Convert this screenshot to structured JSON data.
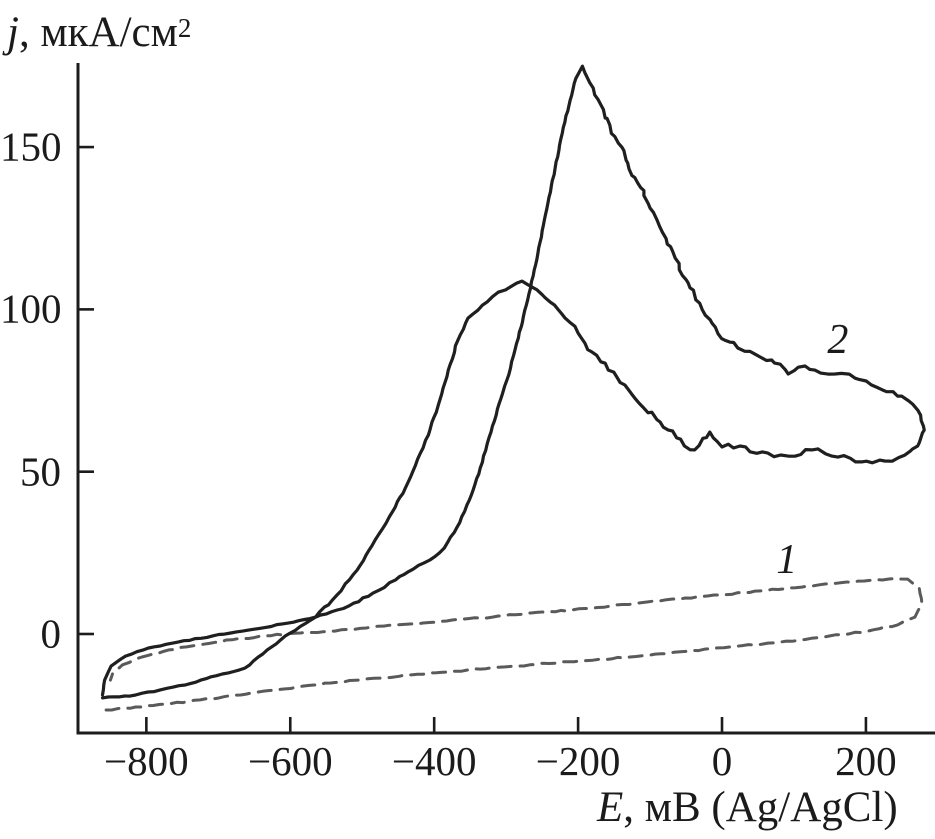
{
  "figure": {
    "background": "#ffffff",
    "description": "Cyclic voltammogram with two CV loops: dashed background curve 1 and solid curve 2 with anodic peaks"
  },
  "chart_data": {
    "type": "line",
    "title": "",
    "axis_color": "#1c1c1c",
    "x_axis": {
      "label_var": "E",
      "label_rest": ", мВ (Ag/AgCl)",
      "min": -895,
      "max": 296,
      "ticks": [
        -800,
        -600,
        -400,
        -200,
        0,
        200
      ],
      "tick_labels": [
        "−800",
        "−600",
        "−400",
        "−200",
        "0",
        "200"
      ]
    },
    "y_axis": {
      "label_var": "j",
      "label_rest": ", мкА/см",
      "label_sup": "2",
      "min": -30.5,
      "max": 175.9,
      "ticks": [
        150,
        100,
        50,
        0
      ],
      "tick_labels": [
        "150",
        "100",
        "50",
        "0"
      ]
    },
    "grid": false,
    "legend": "inline numeric labels near curves",
    "annotations": [
      {
        "text": "1",
        "E": 90,
        "j": 22.8
      },
      {
        "text": "2",
        "E": 161,
        "j": 90.6
      }
    ],
    "series": [
      {
        "name": "1",
        "style": "dashed",
        "color": "#5a5a5a",
        "width": 3,
        "dash": "13 9",
        "peaks": [],
        "segments": [
          {
            "noise": 0.7,
            "points": [
              [
                -856,
                -23.4
              ],
              [
                -815,
                -22.5
              ],
              [
                -774,
                -21.6
              ],
              [
                -725,
                -20.3
              ],
              [
                -669,
                -18.8
              ],
              [
                -607,
                -16.9
              ],
              [
                -544,
                -15.1
              ],
              [
                -475,
                -13.6
              ],
              [
                -406,
                -12.0
              ],
              [
                -336,
                -10.8
              ],
              [
                -267,
                -9.5
              ],
              [
                -197,
                -8.3
              ],
              [
                -128,
                -7.1
              ],
              [
                -58,
                -5.5
              ],
              [
                11,
                -4.0
              ],
              [
                81,
                -2.5
              ],
              [
                150,
                -0.6
              ],
              [
                203,
                0.9
              ],
              [
                244,
                2.8
              ],
              [
                268,
                5.2
              ],
              [
                278,
                9.2
              ]
            ]
          },
          {
            "noise": 0.7,
            "points": [
              [
                278,
                9.2
              ],
              [
                274,
                14.2
              ],
              [
                258,
                16.9
              ],
              [
                231,
                16.9
              ],
              [
                189,
                16.3
              ],
              [
                143,
                15.4
              ],
              [
                94,
                14.2
              ],
              [
                46,
                13.2
              ],
              [
                -3,
                12.0
              ],
              [
                -51,
                11.1
              ],
              [
                -103,
                9.9
              ],
              [
                -156,
                8.6
              ],
              [
                -208,
                7.4
              ],
              [
                -264,
                6.5
              ],
              [
                -319,
                5.2
              ],
              [
                -375,
                4.3
              ],
              [
                -431,
                3.1
              ],
              [
                -486,
                2.2
              ],
              [
                -538,
                0.9
              ],
              [
                -586,
                0.3
              ],
              [
                -635,
                -0.6
              ],
              [
                -681,
                -1.8
              ],
              [
                -728,
                -3.4
              ],
              [
                -769,
                -4.9
              ],
              [
                -806,
                -7.1
              ],
              [
                -833,
                -9.5
              ],
              [
                -847,
                -12.3
              ],
              [
                -850,
                -14.2
              ]
            ]
          }
        ]
      },
      {
        "name": "2",
        "style": "solid",
        "color": "#1f1f1f",
        "width": 3.2,
        "dash": "",
        "peaks": [
          {
            "E": -278,
            "j": 109
          },
          {
            "E": -194,
            "j": 175
          }
        ],
        "segments": [
          {
            "noise": 0.7,
            "points": [
              [
                -861,
                -19.7
              ],
              [
                -830,
                -19.1
              ],
              [
                -815,
                -18.8
              ],
              [
                -780,
                -17.2
              ],
              [
                -746,
                -15.7
              ],
              [
                -710,
                -13.2
              ],
              [
                -663,
                -10.5
              ],
              [
                -632,
                -4.9
              ],
              [
                -600,
                0.3
              ],
              [
                -565,
                5.2
              ]
            ]
          },
          {
            "noise": 1.2,
            "points": [
              [
                -565,
                5.2
              ],
              [
                -535,
                12.0
              ],
              [
                -507,
                19.7
              ],
              [
                -482,
                29.0
              ],
              [
                -458,
                37.6
              ],
              [
                -440,
                45.0
              ],
              [
                -426,
                52.0
              ],
              [
                -408,
                61.3
              ],
              [
                -392,
                72.1
              ],
              [
                -378,
                82.9
              ],
              [
                -367,
                90.5
              ],
              [
                -353,
                97.3
              ],
              [
                -333,
                101.3
              ],
              [
                -311,
                105.3
              ],
              [
                -292,
                107.2
              ],
              [
                -278,
                108.7
              ]
            ]
          },
          {
            "noise": 3.0,
            "points": [
              [
                -278,
                108.7
              ],
              [
                -257,
                106.0
              ],
              [
                -239,
                102.3
              ],
              [
                -218,
                97.3
              ],
              [
                -200,
                92.7
              ],
              [
                -181,
                86.9
              ],
              [
                -158,
                81.3
              ],
              [
                -135,
                76.7
              ],
              [
                -110,
                69.9
              ],
              [
                -86,
                65.3
              ],
              [
                -63,
                60.4
              ],
              [
                -38,
                56.7
              ],
              [
                -17,
                62.2
              ],
              [
                0,
                57.6
              ],
              [
                25,
                57.9
              ],
              [
                56,
                56.1
              ],
              [
                92,
                54.8
              ],
              [
                125,
                56.7
              ],
              [
                161,
                54.5
              ],
              [
                194,
                53.0
              ],
              [
                226,
                53.3
              ],
              [
                254,
                55.1
              ],
              [
                272,
                57.9
              ],
              [
                281,
                62.8
              ],
              [
                276,
                67.4
              ]
            ]
          },
          {
            "noise": 3.0,
            "points": [
              [
                276,
                67.4
              ],
              [
                265,
                70.8
              ],
              [
                244,
                73.3
              ],
              [
                217,
                75.8
              ],
              [
                185,
                78.8
              ],
              [
                157,
                80.1
              ],
              [
                129,
                81.3
              ],
              [
                106,
                82.2
              ],
              [
                92,
                80.1
              ],
              [
                69,
                84.4
              ],
              [
                46,
                86.2
              ],
              [
                22,
                88.1
              ],
              [
                4,
                90.5
              ],
              [
                -14,
                95.8
              ],
              [
                -31,
                101.9
              ],
              [
                -47,
                108.1
              ],
              [
                -65,
                115.8
              ],
              [
                -83,
                123.8
              ],
              [
                -100,
                131.2
              ],
              [
                -117,
                138.9
              ],
              [
                -131,
                145.1
              ],
              [
                -144,
                151.2
              ],
              [
                -156,
                156.8
              ],
              [
                -168,
                162.9
              ],
              [
                -179,
                168.2
              ],
              [
                -189,
                172.2
              ],
              [
                -194,
                174.9
              ]
            ]
          },
          {
            "noise": 0.9,
            "points": [
              [
                -194,
                174.9
              ],
              [
                -203,
                171.2
              ],
              [
                -211,
                164.5
              ],
              [
                -222,
                154.3
              ],
              [
                -232,
                143.5
              ],
              [
                -242,
                132.7
              ],
              [
                -251,
                122.3
              ],
              [
                -261,
                112.1
              ],
              [
                -272,
                101.3
              ],
              [
                -283,
                91.2
              ],
              [
                -294,
                81.9
              ],
              [
                -307,
                72.7
              ],
              [
                -321,
                62.2
              ],
              [
                -336,
                51.1
              ],
              [
                -351,
                41.3
              ],
              [
                -368,
                33.0
              ],
              [
                -386,
                26.5
              ],
              [
                -406,
                22.8
              ],
              [
                -429,
                20.0
              ],
              [
                -454,
                16.6
              ],
              [
                -485,
                12.6
              ],
              [
                -519,
                8.6
              ],
              [
                -565,
                5.2
              ]
            ]
          },
          {
            "noise": 0.5,
            "points": [
              [
                -565,
                5.2
              ],
              [
                -611,
                3.1
              ],
              [
                -658,
                1.2
              ],
              [
                -708,
                -0.6
              ],
              [
                -756,
                -2.5
              ],
              [
                -797,
                -4.3
              ],
              [
                -829,
                -6.8
              ],
              [
                -849,
                -9.9
              ],
              [
                -858,
                -14.2
              ],
              [
                -861,
                -18.8
              ]
            ]
          }
        ]
      }
    ]
  }
}
